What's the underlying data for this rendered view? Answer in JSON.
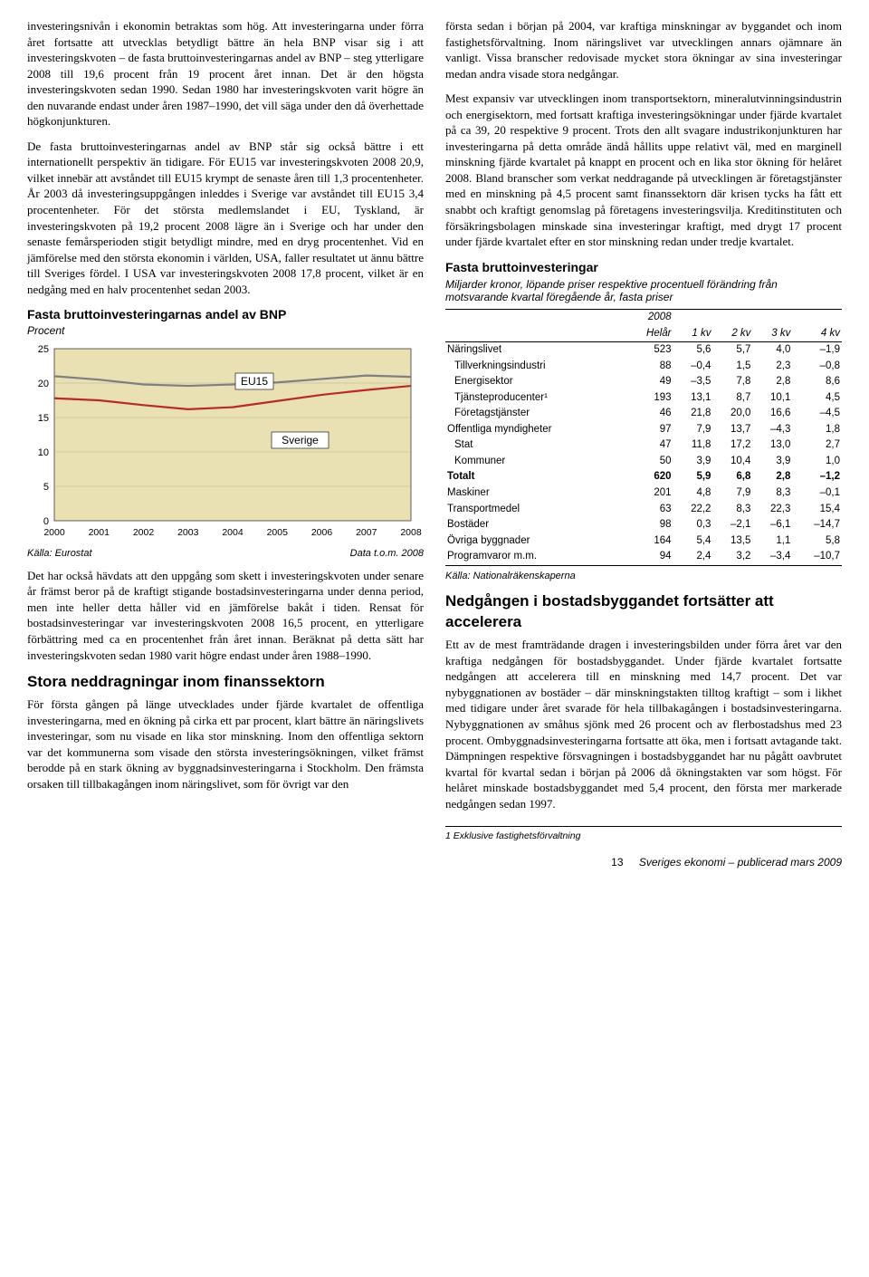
{
  "left": {
    "p1": "investeringsnivån i ekonomin betraktas som hög. Att investeringarna under förra året fortsatte att utvecklas betydligt bättre än hela BNP visar sig i att investeringskvoten – de fasta bruttoinvesteringarnas andel av BNP – steg ytterligare 2008 till 19,6 procent från 19 procent året innan. Det är den högsta investeringskvoten sedan 1990. Sedan 1980 har investeringskvoten varit högre än den nuvarande endast under åren 1987–1990, det vill säga under den då överhettade högkonjunkturen.",
    "p2": "De fasta bruttoinvesteringarnas andel av BNP står sig också bättre i ett internationellt perspektiv än tidigare. För EU15 var investeringskvoten 2008 20,9, vilket innebär att avståndet till EU15 krympt de senaste åren till 1,3 procentenheter. År 2003 då investeringsuppgången inleddes i Sverige var avståndet till EU15 3,4 procentenheter. För det största medlemslandet i EU, Tyskland, är investeringskvoten på 19,2 procent 2008 lägre än i Sverige och har under den senaste femårsperioden stigit betydligt mindre, med en dryg procentenhet. Vid en jämförelse med den största ekonomin i världen, USA, faller resultatet ut ännu bättre till Sveriges fördel. I USA var investeringskvoten 2008 17,8 procent, vilket är en nedgång med en halv procentenhet sedan 2003.",
    "chart": {
      "title": "Fasta bruttoinvesteringarnas andel av BNP",
      "subtitle": "Procent",
      "source_left": "Källa: Eurostat",
      "source_right": "Data t.o.m. 2008",
      "type": "line",
      "background": "#e9e0b3",
      "plot_bg": "#e9e0b3",
      "grid_color": "#b7b09b",
      "ylim": [
        0,
        25
      ],
      "ytick_step": 5,
      "x_labels": [
        "2000",
        "2001",
        "2002",
        "2003",
        "2004",
        "2005",
        "2006",
        "2007",
        "2008"
      ],
      "series": [
        {
          "name": "EU15",
          "color": "#7f7f7f",
          "stroke_width": 2.2,
          "box_x": 230,
          "box_y": 35,
          "values": [
            21.0,
            20.5,
            19.8,
            19.6,
            19.8,
            20.1,
            20.6,
            21.1,
            20.9
          ]
        },
        {
          "name": "Sverige",
          "color": "#b52b2b",
          "stroke_width": 2.2,
          "box_x": 270,
          "box_y": 100,
          "values": [
            17.8,
            17.5,
            16.8,
            16.2,
            16.5,
            17.4,
            18.3,
            19.0,
            19.6
          ]
        }
      ]
    },
    "p3": "Det har också hävdats att den uppgång som skett i investeringskvoten under senare år främst beror på de kraftigt stigande bostadsinvesteringarna under denna period, men inte heller detta håller vid en jämförelse bakåt i tiden. Rensat för bostadsinvesteringar var investeringskvoten 2008 16,5 procent, en ytterligare förbättring med ca en procentenhet från året innan. Beräknat på detta sätt har investeringskvoten sedan 1980 varit högre endast under åren 1988–1990.",
    "h2a": "Stora neddragningar inom finanssektorn",
    "p4": "För första gången på länge utvecklades under fjärde kvartalet de offentliga investeringarna, med en ökning på cirka ett par procent, klart bättre än näringslivets investeringar, som nu visade en lika stor minskning. Inom den offentliga sektorn var det kommunerna som visade den största investeringsökningen, vilket främst berodde på en stark ökning av byggnadsinvesteringarna i Stockholm. Den främsta orsaken till tillbakagången inom näringslivet, som för övrigt var den"
  },
  "right": {
    "p1": "första sedan i början på 2004, var kraftiga minskningar av byggandet och inom fastighetsförvaltning. Inom näringslivet var utvecklingen annars ojämnare än vanligt. Vissa branscher redovisade mycket stora ökningar av sina investeringar medan andra visade stora nedgångar.",
    "p2": "Mest expansiv var utvecklingen inom transportsektorn, mineralutvinningsindustrin och energisektorn, med fortsatt kraftiga investeringsökningar under fjärde kvartalet på ca 39, 20 respektive 9 procent. Trots den allt svagare industrikonjunkturen har investeringarna på detta område ändå hållits uppe relativt väl, med en marginell minskning fjärde kvartalet på knappt en procent och en lika stor ökning för helåret 2008. Bland branscher som verkat neddragande på utvecklingen är företagstjänster med en minskning på 4,5 procent samt finanssektorn där krisen tycks ha fått ett snabbt och kraftigt genomslag på företagens investeringsvilja. Kreditinstituten och försäkringsbolagen minskade sina investeringar kraftigt, med drygt 17 procent under fjärde kvartalet efter en stor minskning redan under tredje kvartalet.",
    "table": {
      "title": "Fasta bruttoinvesteringar",
      "subtitle": "Miljarder kronor, löpande priser respektive procentuell förändring från motsvarande kvartal föregående år, fasta priser",
      "year": "2008",
      "cols": [
        "",
        "Helår",
        "1 kv",
        "2 kv",
        "3 kv",
        "4 kv"
      ],
      "rows": [
        {
          "cells": [
            "Näringslivet",
            "523",
            "5,6",
            "5,7",
            "4,0",
            "–1,9"
          ]
        },
        {
          "cells": [
            "Tillverkningsindustri",
            "88",
            "–0,4",
            "1,5",
            "2,3",
            "–0,8"
          ],
          "indent": true
        },
        {
          "cells": [
            "Energisektor",
            "49",
            "–3,5",
            "7,8",
            "2,8",
            "8,6"
          ],
          "indent": true
        },
        {
          "cells": [
            "Tjänsteproducenter¹",
            "193",
            "13,1",
            "8,7",
            "10,1",
            "4,5"
          ],
          "indent": true
        },
        {
          "cells": [
            "Företagstjänster",
            "46",
            "21,8",
            "20,0",
            "16,6",
            "–4,5"
          ],
          "indent": true
        },
        {
          "cells": [
            "Offentliga myndigheter",
            "97",
            "7,9",
            "13,7",
            "–4,3",
            "1,8"
          ]
        },
        {
          "cells": [
            "Stat",
            "47",
            "11,8",
            "17,2",
            "13,0",
            "2,7"
          ],
          "indent": true
        },
        {
          "cells": [
            "Kommuner",
            "50",
            "3,9",
            "10,4",
            "3,9",
            "1,0"
          ],
          "indent": true
        },
        {
          "cells": [
            "Totalt",
            "620",
            "5,9",
            "6,8",
            "2,8",
            "–1,2"
          ],
          "bold": true
        },
        {
          "cells": [
            "Maskiner",
            "201",
            "4,8",
            "7,9",
            "8,3",
            "–0,1"
          ]
        },
        {
          "cells": [
            "Transportmedel",
            "63",
            "22,2",
            "8,3",
            "22,3",
            "15,4"
          ]
        },
        {
          "cells": [
            "Bostäder",
            "98",
            "0,3",
            "–2,1",
            "–6,1",
            "–14,7"
          ]
        },
        {
          "cells": [
            "Övriga byggnader",
            "164",
            "5,4",
            "13,5",
            "1,1",
            "5,8"
          ]
        },
        {
          "cells": [
            "Programvaror m.m.",
            "94",
            "2,4",
            "3,2",
            "–3,4",
            "–10,7"
          ],
          "last": true
        }
      ],
      "source": "Källa: Nationalräkenskaperna"
    },
    "h2b": "Nedgången i bostadsbyggandet fortsätter att accelerera",
    "p3": "Ett av de mest framträdande dragen i investeringsbilden under förra året var den kraftiga nedgången för bostadsbyggandet. Under fjärde kvartalet fortsatte nedgången att accelerera till en minskning med 14,7 procent. Det var nybyggnationen av bostäder – där minskningstakten tilltog kraftigt – som i likhet med tidigare under året svarade för hela tillbakagången i bostadsinvesteringarna. Nybyggnationen av småhus sjönk med 26 procent och av flerbostadshus med 23 procent. Ombyggnadsinvesteringarna fortsatte att öka, men i fortsatt avtagande takt. Dämpningen respektive försvagningen i bostadsbyggandet har nu pågått oavbrutet kvartal för kvartal sedan i början på 2006 då ökningstakten var som högst. För helåret minskade bostadsbyggandet med 5,4 procent, den första mer markerade nedgången sedan 1997.",
    "footnote": "1  Exklusive fastighetsförvaltning"
  },
  "footer": {
    "page": "13",
    "pub": "Sveriges ekonomi – publicerad mars 2009"
  }
}
